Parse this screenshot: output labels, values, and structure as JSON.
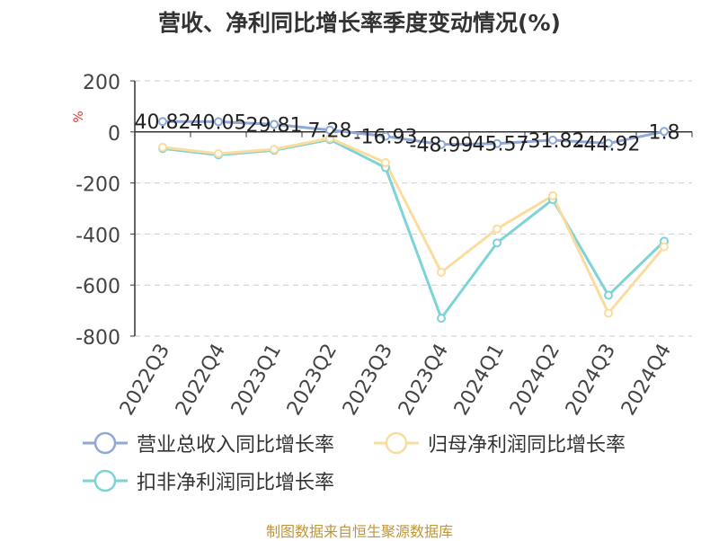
{
  "title": "营收、净利同比增长率季度变动情况(%)",
  "source": "制图数据来自恒生聚源数据库",
  "chart_data": {
    "type": "line",
    "title": "营收、净利同比增长率季度变动情况(%)",
    "ylabel": "%",
    "xlabel": "",
    "ylim": [
      -800,
      200
    ],
    "yticks": [
      "200",
      "0",
      "-200",
      "-400",
      "-600",
      "-800"
    ],
    "categories": [
      "2022Q3",
      "2022Q4",
      "2023Q1",
      "2023Q2",
      "2023Q3",
      "2023Q4",
      "2024Q1",
      "2024Q2",
      "2024Q3",
      "2024Q4"
    ],
    "grid": true,
    "legend_position": "bottom",
    "series": [
      {
        "name": "营业总收入同比增长率",
        "color": "#8fa8d8",
        "values": [
          40.82,
          40.05,
          29.81,
          7.28,
          -16.93,
          -48.99,
          -45.57,
          -31.82,
          -44.92,
          1.8
        ],
        "labels": [
          "40.82",
          "40.05",
          "29.81",
          "7.28",
          "-16.93",
          "-48.99",
          "-45.57",
          "-31.82",
          "-44.92",
          "1.8"
        ]
      },
      {
        "name": "归母净利润同比增长率",
        "color": "#fadc9e",
        "values": [
          -60,
          -85,
          -68,
          -25,
          -120,
          -550,
          -380,
          -250,
          -710,
          -450
        ]
      },
      {
        "name": "扣非净利润同比增长率",
        "color": "#7ed3d6",
        "values": [
          -65,
          -90,
          -72,
          -30,
          -140,
          -730,
          -435,
          -265,
          -640,
          -428
        ]
      }
    ]
  }
}
